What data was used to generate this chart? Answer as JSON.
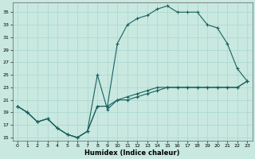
{
  "xlabel": "Humidex (Indice chaleur)",
  "bg_color": "#c8e8e0",
  "grid_color": "#a8d8d0",
  "line_color": "#1a6060",
  "x_hours": [
    0,
    1,
    2,
    3,
    4,
    5,
    6,
    7,
    8,
    9,
    10,
    11,
    12,
    13,
    14,
    15,
    16,
    17,
    18,
    19,
    20,
    21,
    22,
    23
  ],
  "line1": [
    20,
    19,
    17.5,
    18,
    16.5,
    15.5,
    15,
    16,
    20,
    20,
    30,
    33,
    34,
    34.5,
    35.5,
    36,
    35,
    35,
    35,
    33,
    32.5,
    30,
    26,
    24
  ],
  "line2": [
    20,
    19,
    17.5,
    18,
    16.5,
    15.5,
    15,
    16,
    20,
    20,
    21,
    21,
    21.5,
    22,
    22.5,
    23,
    23,
    23,
    23,
    23,
    23,
    23,
    23,
    24
  ],
  "line3": [
    20,
    19,
    17.5,
    18,
    16.5,
    15.5,
    15,
    16,
    25,
    19.5,
    21,
    21.5,
    22,
    22.5,
    23,
    23,
    23,
    23,
    23,
    23,
    23,
    23,
    23,
    24
  ],
  "ylim": [
    14.5,
    36.5
  ],
  "xlim": [
    -0.5,
    23.5
  ],
  "yticks": [
    15,
    17,
    19,
    21,
    23,
    25,
    27,
    29,
    31,
    33,
    35
  ],
  "xticks": [
    0,
    1,
    2,
    3,
    4,
    5,
    6,
    7,
    8,
    9,
    10,
    11,
    12,
    13,
    14,
    15,
    16,
    17,
    18,
    19,
    20,
    21,
    22,
    23
  ]
}
